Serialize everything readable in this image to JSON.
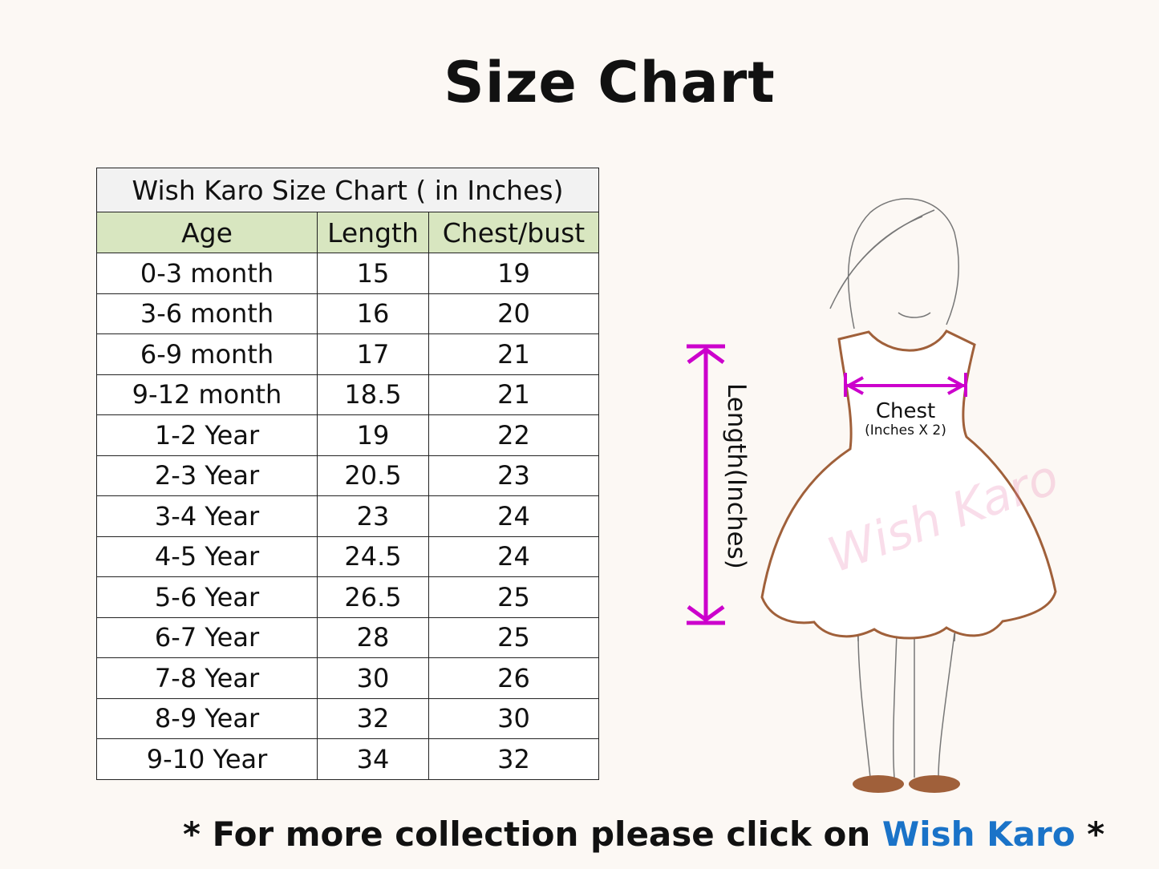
{
  "page_title": "Size Chart",
  "table": {
    "caption": "Wish Karo Size Chart ( in Inches)",
    "headers": [
      "Age",
      "Length",
      "Chest/bust"
    ],
    "rows": [
      [
        "0-3 month",
        "15",
        "19"
      ],
      [
        "3-6 month",
        "16",
        "20"
      ],
      [
        "6-9 month",
        "17",
        "21"
      ],
      [
        "9-12 month",
        "18.5",
        "21"
      ],
      [
        "1-2 Year",
        "19",
        "22"
      ],
      [
        "2-3 Year",
        "20.5",
        "23"
      ],
      [
        "3-4 Year",
        "23",
        "24"
      ],
      [
        "4-5 Year",
        "24.5",
        "24"
      ],
      [
        "5-6 Year",
        "26.5",
        "25"
      ],
      [
        "6-7 Year",
        "28",
        "25"
      ],
      [
        "7-8 Year",
        "30",
        "26"
      ],
      [
        "8-9 Year",
        "32",
        "30"
      ],
      [
        "9-10 Year",
        "34",
        "32"
      ]
    ],
    "watermark": "Wish Karo"
  },
  "illustration": {
    "length_label": "Length(Inches)",
    "chest_label": "Chest",
    "chest_sublabel": "(Inches X 2)",
    "watermark": "Wish Karo",
    "arrow_color": "#cc00cc",
    "dress_outline_color": "#a0603a"
  },
  "footer": {
    "prefix": "* For more collection please click on ",
    "link": "Wish Karo",
    "suffix": " *",
    "link_color": "#1a73c8"
  }
}
